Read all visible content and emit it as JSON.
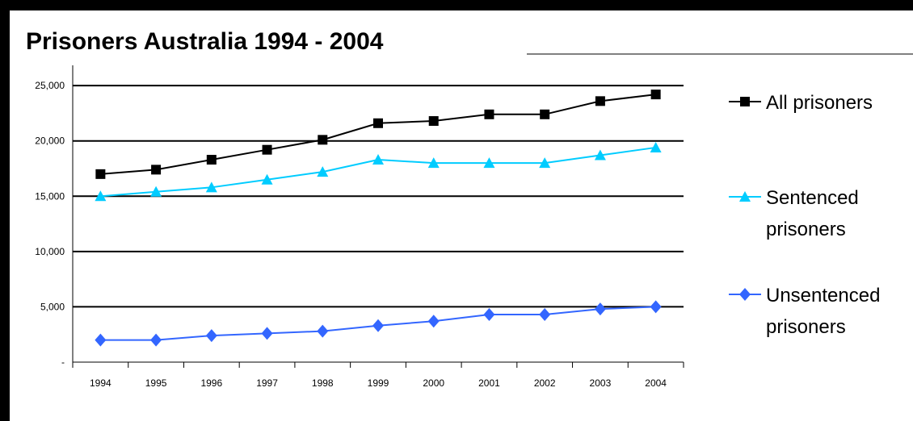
{
  "chart_data": {
    "type": "line",
    "title": "Prisoners Australia  1994 - 2004",
    "categories": [
      "1994",
      "1995",
      "1996",
      "1997",
      "1998",
      "1999",
      "2000",
      "2001",
      "2002",
      "2003",
      "2004"
    ],
    "ylim": [
      0,
      28000
    ],
    "yticks": [
      0,
      5000,
      10000,
      15000,
      20000,
      25000
    ],
    "ytick_labels": [
      "-",
      "5,000",
      "10,000",
      "15,000",
      "20,000",
      "25,000"
    ],
    "grid": true,
    "legend_position": "right",
    "series": [
      {
        "name": "All prisoners",
        "color": "#000000",
        "marker": "square",
        "values": [
          17000,
          17400,
          18300,
          19200,
          20100,
          21600,
          21800,
          22400,
          22400,
          23600,
          24200
        ]
      },
      {
        "name": "Sentenced prisoners",
        "color": "#00ccff",
        "marker": "triangle",
        "values": [
          15000,
          15400,
          15800,
          16500,
          17200,
          18300,
          18000,
          18000,
          18000,
          18700,
          19400
        ]
      },
      {
        "name": "Unsentenced prisoners",
        "color": "#3366ff",
        "marker": "diamond",
        "values": [
          2000,
          2000,
          2400,
          2600,
          2800,
          3300,
          3700,
          4300,
          4300,
          4800,
          5000
        ]
      }
    ]
  }
}
